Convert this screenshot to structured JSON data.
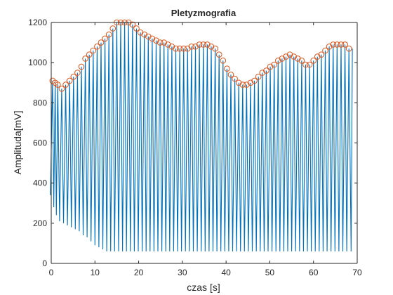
{
  "chart_data": {
    "type": "line",
    "title": "Pletyzmografia",
    "xlabel": "czas [s]",
    "ylabel": "Amplituda[mV]",
    "xlim": [
      0,
      70
    ],
    "ylim": [
      0,
      1200
    ],
    "xticks": [
      0,
      10,
      20,
      30,
      40,
      50,
      60,
      70
    ],
    "yticks": [
      0,
      200,
      400,
      600,
      800,
      1000,
      1200
    ],
    "grid": false,
    "colors": {
      "signal": "#0072BD",
      "peaks": "#D95319",
      "axes": "#262626"
    },
    "series": [
      {
        "style": "line",
        "description_hint": "pulsatile oscillation between lower envelope and upper envelope",
        "x": [
          0.3,
          0.9,
          1.5,
          2.4,
          3.3,
          4.2,
          5.1,
          6.0,
          6.9,
          7.8,
          8.7,
          9.6,
          10.5,
          11.4,
          12.3,
          13.2,
          14.1,
          15.0,
          15.9,
          16.8,
          17.7,
          18.6,
          19.5,
          20.4,
          21.3,
          22.2,
          23.1,
          24.0,
          24.9,
          25.8,
          26.7,
          27.6,
          28.5,
          29.4,
          30.3,
          31.2,
          32.1,
          33.0,
          33.9,
          34.8,
          35.7,
          36.6,
          37.5,
          38.4,
          39.3,
          40.2,
          41.1,
          42.0,
          42.9,
          43.8,
          44.7,
          45.6,
          46.5,
          47.4,
          48.3,
          49.2,
          50.1,
          51.0,
          51.9,
          52.8,
          53.7,
          54.6,
          55.5,
          56.4,
          57.3,
          58.2,
          59.1,
          60.0,
          60.9,
          61.8,
          62.7,
          63.6,
          64.5,
          65.4,
          66.3,
          67.2,
          68.1
        ],
        "y_max": [
          910,
          900,
          890,
          870,
          890,
          910,
          930,
          950,
          980,
          1020,
          1040,
          1060,
          1080,
          1100,
          1120,
          1140,
          1170,
          1200,
          1200,
          1200,
          1200,
          1190,
          1170,
          1150,
          1140,
          1130,
          1120,
          1110,
          1100,
          1100,
          1090,
          1080,
          1070,
          1070,
          1070,
          1070,
          1080,
          1080,
          1090,
          1090,
          1090,
          1080,
          1070,
          1040,
          1010,
          970,
          940,
          920,
          900,
          890,
          890,
          900,
          910,
          930,
          950,
          960,
          980,
          990,
          1010,
          1020,
          1030,
          1040,
          1030,
          1020,
          1010,
          990,
          990,
          1010,
          1030,
          1040,
          1060,
          1080,
          1090,
          1090,
          1090,
          1090,
          1070
        ],
        "y_min": [
          340,
          280,
          240,
          210,
          200,
          190,
          180,
          170,
          160,
          140,
          130,
          110,
          90,
          80,
          70,
          60,
          60,
          60,
          60,
          60,
          60,
          60,
          60,
          60,
          60,
          60,
          60,
          60,
          60,
          60,
          60,
          60,
          60,
          60,
          60,
          60,
          60,
          60,
          60,
          60,
          60,
          60,
          60,
          60,
          60,
          60,
          60,
          60,
          60,
          60,
          60,
          60,
          60,
          60,
          60,
          60,
          60,
          60,
          60,
          60,
          60,
          60,
          60,
          60,
          60,
          60,
          60,
          60,
          60,
          60,
          60,
          60,
          60,
          60,
          60,
          60,
          60
        ]
      },
      {
        "style": "markers",
        "x": [
          0.3,
          0.9,
          1.5,
          2.4,
          3.3,
          4.2,
          5.1,
          6.0,
          6.9,
          7.8,
          8.7,
          9.6,
          10.5,
          11.4,
          12.3,
          13.2,
          14.1,
          15.0,
          15.9,
          16.8,
          17.7,
          18.6,
          19.5,
          20.4,
          21.3,
          22.2,
          23.1,
          24.0,
          24.9,
          25.8,
          26.7,
          27.6,
          28.5,
          29.4,
          30.3,
          31.2,
          32.1,
          33.0,
          33.9,
          34.8,
          35.7,
          36.6,
          37.5,
          38.4,
          39.3,
          40.2,
          41.1,
          42.0,
          42.9,
          43.8,
          44.7,
          45.6,
          46.5,
          47.4,
          48.3,
          49.2,
          50.1,
          51.0,
          51.9,
          52.8,
          53.7,
          54.6,
          55.5,
          56.4,
          57.3,
          58.2,
          59.1,
          60.0,
          60.9,
          61.8,
          62.7,
          63.6,
          64.5,
          65.4,
          66.3,
          67.2,
          68.1
        ],
        "y": [
          910,
          900,
          890,
          870,
          890,
          910,
          930,
          950,
          980,
          1020,
          1040,
          1060,
          1080,
          1100,
          1120,
          1140,
          1170,
          1200,
          1200,
          1200,
          1200,
          1190,
          1170,
          1150,
          1140,
          1130,
          1120,
          1110,
          1100,
          1100,
          1090,
          1080,
          1070,
          1070,
          1070,
          1070,
          1080,
          1080,
          1090,
          1090,
          1090,
          1080,
          1070,
          1040,
          1010,
          970,
          940,
          920,
          900,
          890,
          890,
          900,
          910,
          930,
          950,
          960,
          980,
          990,
          1010,
          1020,
          1030,
          1040,
          1030,
          1020,
          1010,
          990,
          990,
          1010,
          1030,
          1040,
          1060,
          1080,
          1090,
          1090,
          1090,
          1090,
          1070
        ]
      }
    ]
  }
}
